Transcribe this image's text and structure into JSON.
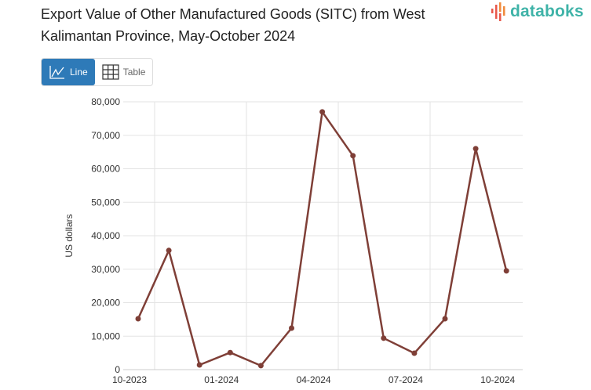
{
  "title": "Export Value of Other Manufactured Goods (SITC) from West Kalimantan Province, May-October 2024",
  "logo": {
    "text": "databoks",
    "icon": "bars-logo-icon"
  },
  "view_toggle": {
    "line_label": "Line",
    "table_label": "Table",
    "selected": "Line"
  },
  "colors": {
    "series": "#7f3f37",
    "accent": "#2e7ab8",
    "grid": "#e3e3e3"
  },
  "chart_data": {
    "type": "line",
    "title": "Export Value of Other Manufactured Goods (SITC) from West Kalimantan Province, May-October 2024",
    "xlabel": "",
    "ylabel": "US dollars",
    "x": [
      "10-2023",
      "11-2023",
      "12-2023",
      "01-2024",
      "02-2024",
      "03-2024",
      "04-2024",
      "05-2024",
      "06-2024",
      "07-2024",
      "08-2024",
      "09-2024",
      "10-2024"
    ],
    "series": [
      {
        "values": [
          15200,
          35600,
          1400,
          5100,
          1200,
          12400,
          77000,
          63900,
          9400,
          4900,
          15200,
          66000,
          29500
        ]
      }
    ],
    "x_tick_labels": [
      "10-2023",
      "01-2024",
      "04-2024",
      "07-2024",
      "10-2024"
    ],
    "y_tick_labels": [
      "0",
      "10,000",
      "20,000",
      "30,000",
      "40,000",
      "50,000",
      "60,000",
      "70,000",
      "80,000"
    ],
    "ylim": [
      0,
      80000
    ],
    "grid": true,
    "legend": "none"
  }
}
